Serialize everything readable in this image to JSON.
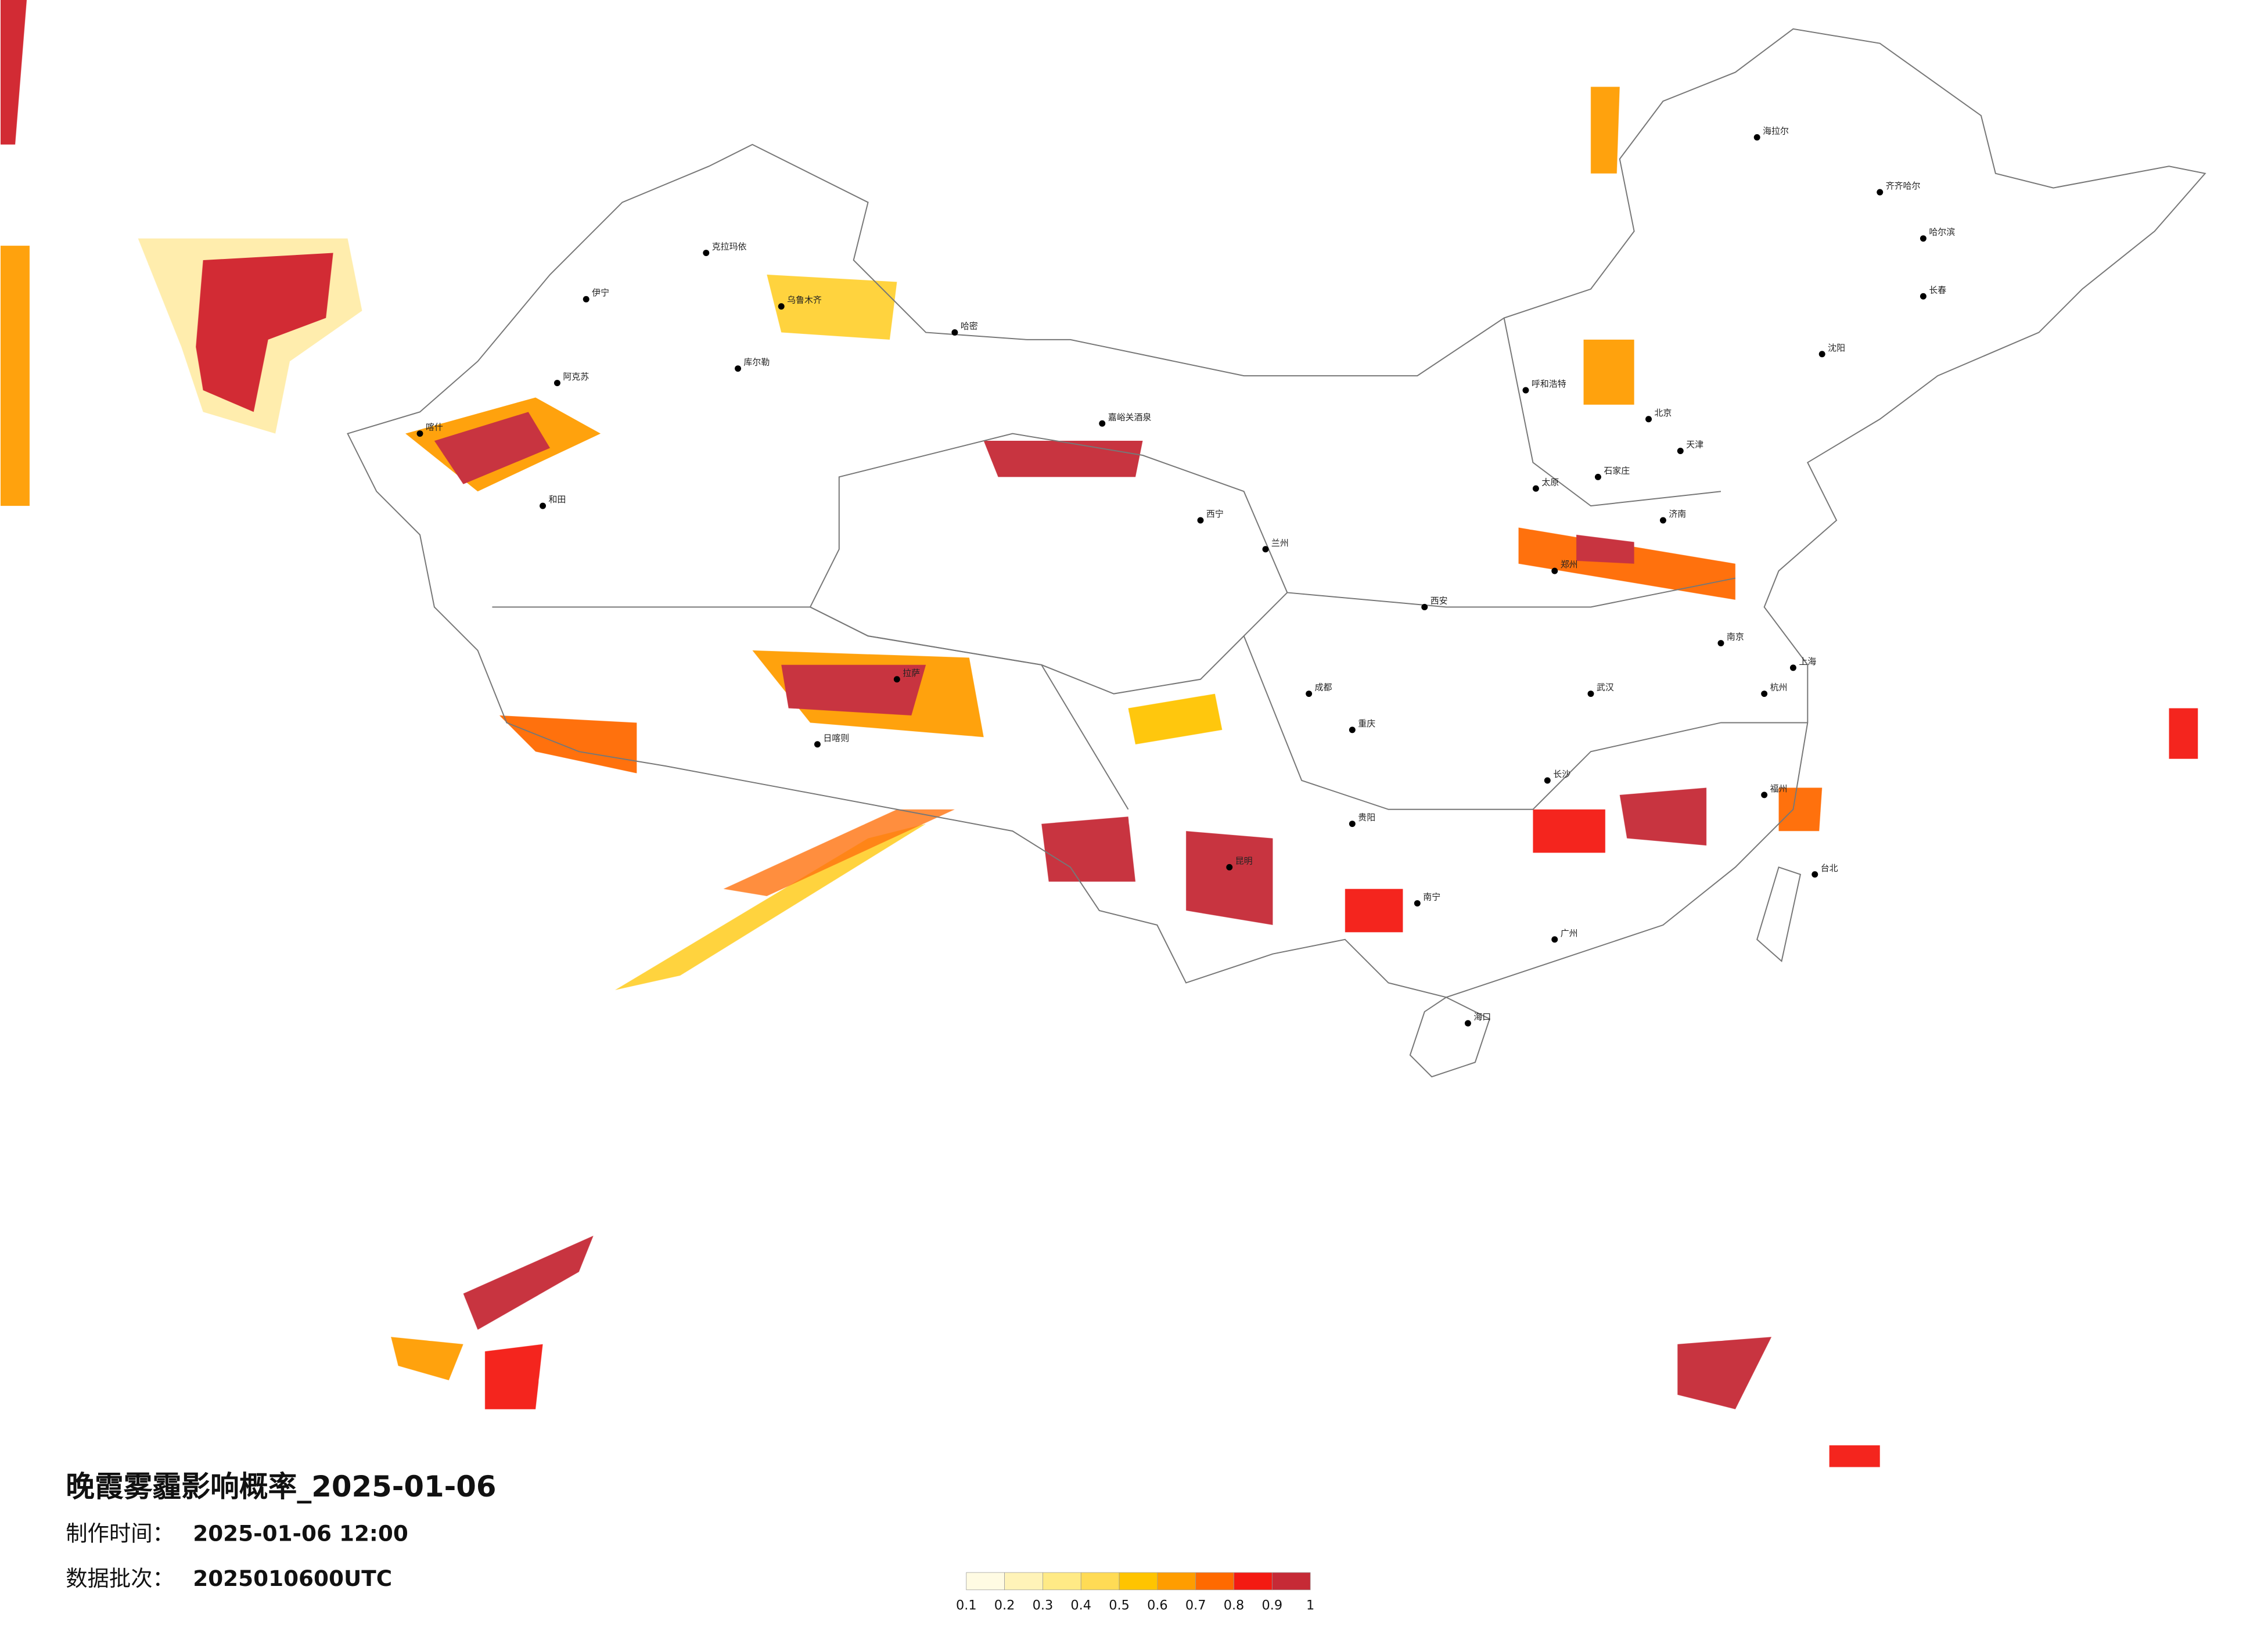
{
  "map": {
    "title": "晚霞雾霾影响概率_2025-01-06",
    "production_time": {
      "label": "制作时间：",
      "value": "2025-01-06 12:00"
    },
    "data_batch": {
      "label": "数据批次：",
      "value": "2025010600UTC"
    },
    "legend": {
      "ticks": [
        0.1,
        0.2,
        0.3,
        0.4,
        0.5,
        0.6,
        0.7,
        0.8,
        0.9,
        1
      ],
      "colors": [
        "#fffbe3",
        "#fff3b8",
        "#ffea86",
        "#ffdb55",
        "#ffc400",
        "#ff9d00",
        "#ff6a00",
        "#f41a12",
        "#c62a36"
      ]
    },
    "cities": [
      "克拉玛依",
      "乌鲁木齐",
      "哈密",
      "伊宁",
      "阿克苏",
      "喀什",
      "和田",
      "库尔勒",
      "嘉峪关酒泉",
      "西宁",
      "兰州",
      "拉萨",
      "日喀则",
      "呼和浩特",
      "北京",
      "天津",
      "石家庄",
      "太原",
      "西安",
      "成都",
      "重庆",
      "昆明",
      "贵阳",
      "南宁",
      "广州",
      "长沙",
      "武汉",
      "南京",
      "上海",
      "杭州",
      "福州",
      "郑州",
      "济南",
      "哈尔滨",
      "长春",
      "沈阳",
      "海口",
      "台北",
      "海拉尔",
      "齐齐哈尔"
    ]
  }
}
